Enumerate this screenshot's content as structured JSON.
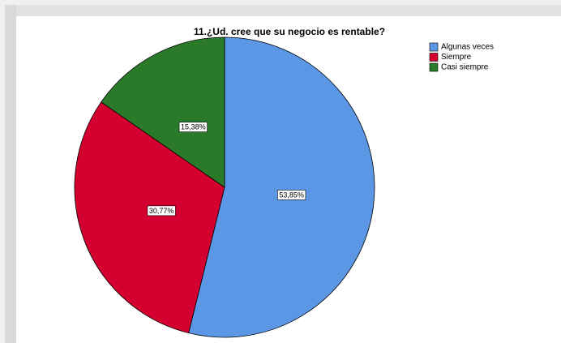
{
  "chart_data": {
    "type": "pie",
    "title": "11.¿Ud. cree que su negocio es rentable?",
    "categories": [
      "Algunas veces",
      "Siempre",
      "Casi siempre"
    ],
    "values": [
      53.85,
      30.77,
      15.38
    ],
    "value_labels": [
      "53,85%",
      "30,77%",
      "15,38%"
    ],
    "colors": [
      "#5b97e5",
      "#d40030",
      "#2a7a2a"
    ],
    "legend": "top-right"
  }
}
